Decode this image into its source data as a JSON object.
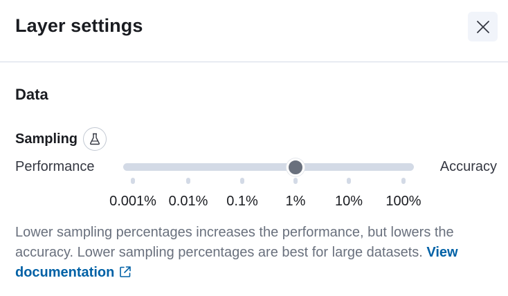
{
  "header": {
    "title": "Layer settings",
    "close_icon": "close-icon"
  },
  "section": {
    "title": "Data"
  },
  "sampling": {
    "label": "Sampling",
    "badge_icon": "beaker-icon",
    "left_label": "Performance",
    "right_label": "Accuracy",
    "ticks": [
      "0.001%",
      "0.01%",
      "0.1%",
      "1%",
      "10%",
      "100%"
    ],
    "selected": "1%",
    "colors": {
      "track": "#d3dae6",
      "thumb": "#69707d"
    }
  },
  "help": {
    "text": "Lower sampling percentages increases the performance, but lowers the accuracy. Lower sampling percentages are best for large datasets. ",
    "link_label": "View documentation",
    "link_icon": "external-link-icon",
    "link_color": "#0061a6"
  }
}
